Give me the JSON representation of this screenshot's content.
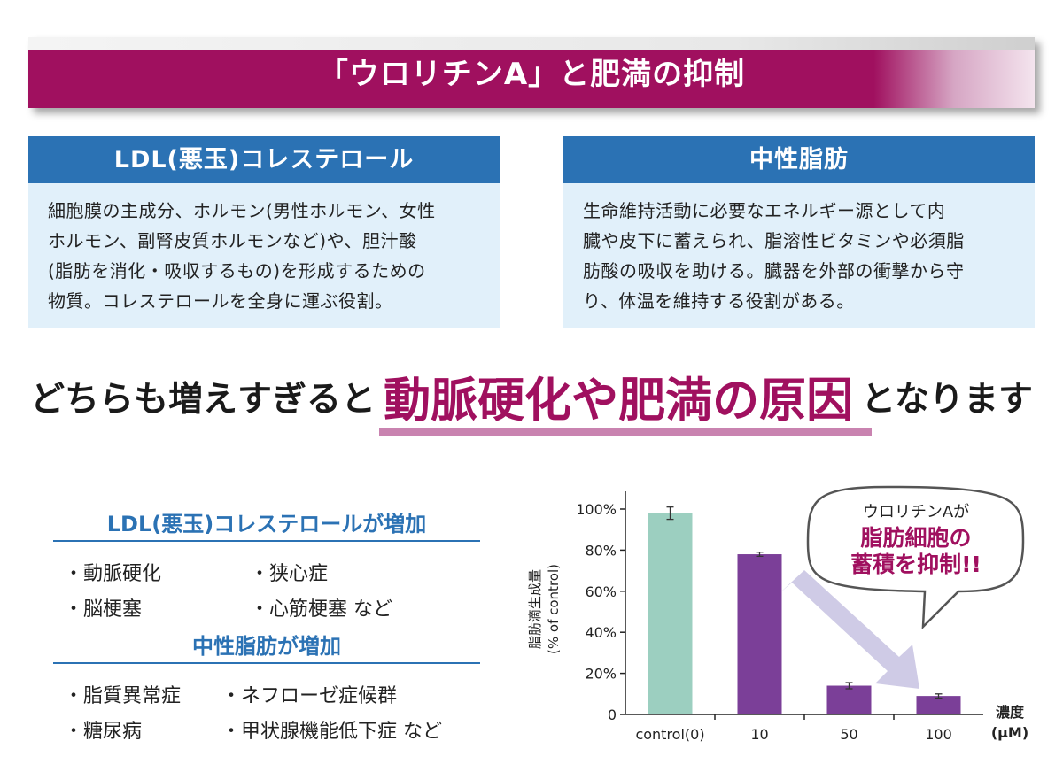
{
  "banner": {
    "title": "「ウロリチンA」と肥満の抑制"
  },
  "boxes": [
    {
      "heading": "LDL(悪玉)コレステロール",
      "lines": [
        "細胞膜の主成分、ホルモン(男性ホルモン、女性",
        "ホルモン、副腎皮質ホルモンなど)や、胆汁酸",
        "(脂肪を消化・吸収するもの)を形成するための",
        "物質。コレステロールを全身に運ぶ役割。"
      ]
    },
    {
      "heading": "中性脂肪",
      "lines": [
        "生命維持活動に必要なエネルギー源として内",
        "臓や皮下に蓄えられ、脂溶性ビタミンや必須脂",
        "肪酸の吸収を助ける。臓器を外部の衝撃から守",
        "り、体温を維持する役割がある。"
      ]
    }
  ],
  "headline": {
    "before": "どちらも増えすぎると",
    "emphasis": "動脈硬化や肥満の原因",
    "after": "となります"
  },
  "sections": [
    {
      "title": "LDL(悪玉)コレステロールが増加",
      "items": [
        "・動脈硬化",
        "・狭心症",
        "・脳梗塞",
        "・心筋梗塞 など"
      ]
    },
    {
      "title": "中性脂肪が増加",
      "items": [
        "・脂質異常症",
        "・ネフローゼ症候群",
        "・糖尿病",
        "・甲状腺機能低下症 など"
      ]
    }
  ],
  "callout": {
    "line1": "ウロリチンAが",
    "line2": "脂肪細胞の",
    "line3": "蓄積を抑制!!"
  },
  "colors": {
    "accent": "#a0105f",
    "blue": "#2b72b4",
    "control_bar": "#9ccfc0",
    "treated_bar": "#7b3f98",
    "arrow": "#cfcbe6"
  },
  "chart_data": {
    "type": "bar",
    "categories": [
      "control(0)",
      "10",
      "50",
      "100"
    ],
    "values": [
      98,
      78,
      14,
      9
    ],
    "errors": [
      3,
      1,
      1.5,
      1
    ],
    "ylabel_line1": "脂肪滴生成量",
    "ylabel_line2": "(% of control)",
    "xlabel_line1": "濃度",
    "xlabel_line2": "(μM)",
    "ylim": [
      0,
      100
    ],
    "yticks": [
      "0",
      "20%",
      "40%",
      "60%",
      "80%",
      "100%"
    ],
    "ytick_values": [
      0,
      20,
      40,
      60,
      80,
      100
    ],
    "grid": false
  }
}
